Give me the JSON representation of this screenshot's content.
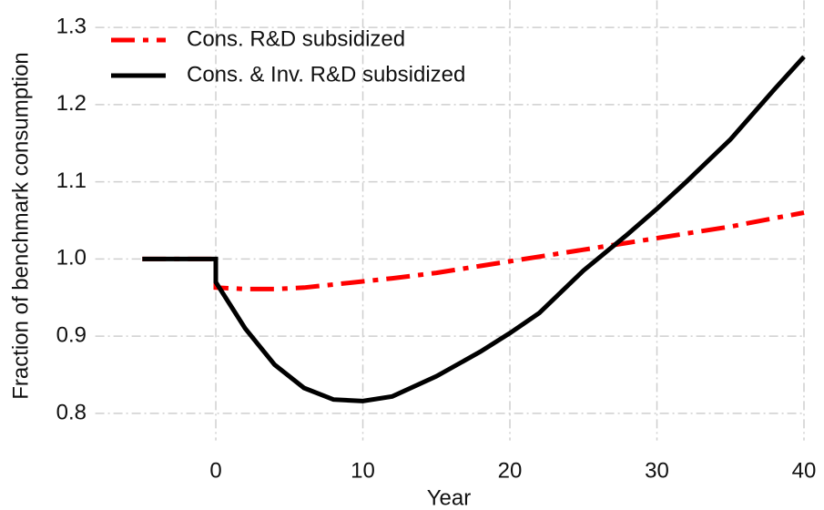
{
  "chart_data": {
    "type": "line",
    "xlabel": "Year",
    "ylabel": "Fraction of benchmark consumption",
    "x": [
      -5,
      0,
      0,
      2,
      4,
      6,
      8,
      10,
      12,
      15,
      18,
      20,
      22,
      25,
      28,
      30,
      32,
      35,
      38,
      40
    ],
    "series": [
      {
        "name": "Cons. R&D subsidized",
        "color": "#ff0000",
        "dash": "dashdot",
        "values": [
          1.0,
          1.0,
          0.963,
          0.961,
          0.961,
          0.963,
          0.967,
          0.971,
          0.975,
          0.982,
          0.991,
          0.997,
          1.003,
          1.012,
          1.021,
          1.027,
          1.033,
          1.042,
          1.053,
          1.06
        ]
      },
      {
        "name": "Cons. & Inv. R&D subsidized",
        "color": "#000000",
        "dash": "solid",
        "values": [
          1.0,
          1.0,
          0.97,
          0.91,
          0.863,
          0.833,
          0.818,
          0.816,
          0.822,
          0.848,
          0.88,
          0.904,
          0.93,
          0.985,
          1.032,
          1.065,
          1.1,
          1.155,
          1.22,
          1.262
        ]
      }
    ],
    "xlim": [
      -8.2,
      40
    ],
    "xticks": [
      0,
      10,
      20,
      30,
      40
    ],
    "ylim": [
      0.765,
      1.335
    ],
    "yticks": [
      0.8,
      0.9,
      {
        "value": 1,
        "label": "1.0"
      },
      1.1,
      1.2,
      1.3
    ],
    "grid": true,
    "legend": "upper left"
  }
}
